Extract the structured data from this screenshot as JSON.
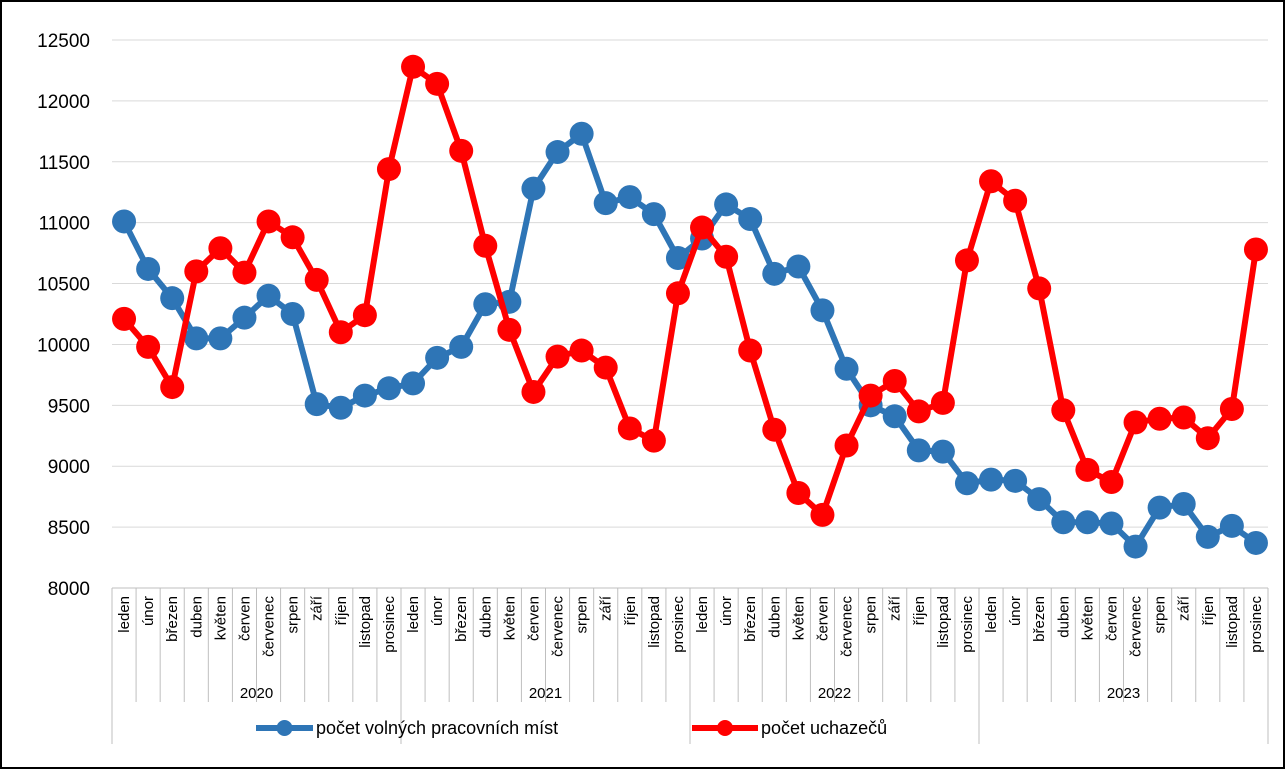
{
  "chart_data": {
    "type": "line",
    "title": "",
    "xlabel": "",
    "ylabel": "",
    "ylim": [
      8000,
      12500
    ],
    "yticks": [
      8000,
      8500,
      9000,
      9500,
      10000,
      10500,
      11000,
      11500,
      12000,
      12500
    ],
    "grid": true,
    "legend_position": "bottom",
    "years": [
      "2020",
      "2021",
      "2022",
      "2023"
    ],
    "months": [
      "leden",
      "únor",
      "březen",
      "duben",
      "květen",
      "červen",
      "červenec",
      "srpen",
      "září",
      "říjen",
      "listopad",
      "prosinec"
    ],
    "series": [
      {
        "name": "počet volných pracovních míst",
        "color": "#2E75B6",
        "values": [
          11010,
          10620,
          10380,
          10050,
          10050,
          10220,
          10400,
          10250,
          9510,
          9480,
          9580,
          9640,
          9680,
          9890,
          9980,
          10330,
          10350,
          11280,
          11580,
          11730,
          11160,
          11210,
          11070,
          10710,
          10870,
          11150,
          11030,
          10580,
          10640,
          10280,
          9800,
          9500,
          9410,
          9130,
          9120,
          8860,
          8890,
          8880,
          8730,
          8540,
          8540,
          8530,
          8340,
          8660,
          8690,
          8420,
          8510,
          8370
        ]
      },
      {
        "name": "počet uchazečů",
        "color": "#FF0000",
        "values": [
          10210,
          9980,
          9650,
          10600,
          10790,
          10590,
          11010,
          10880,
          10530,
          10100,
          10240,
          11440,
          12280,
          12140,
          11590,
          10810,
          10120,
          9610,
          9900,
          9950,
          9810,
          9310,
          9210,
          10420,
          10960,
          10720,
          9950,
          9300,
          8780,
          8600,
          9170,
          9580,
          9700,
          9450,
          9520,
          10690,
          11340,
          11180,
          10460,
          9460,
          8970,
          8870,
          9360,
          9390,
          9400,
          9230,
          9470,
          10780
        ]
      }
    ]
  }
}
